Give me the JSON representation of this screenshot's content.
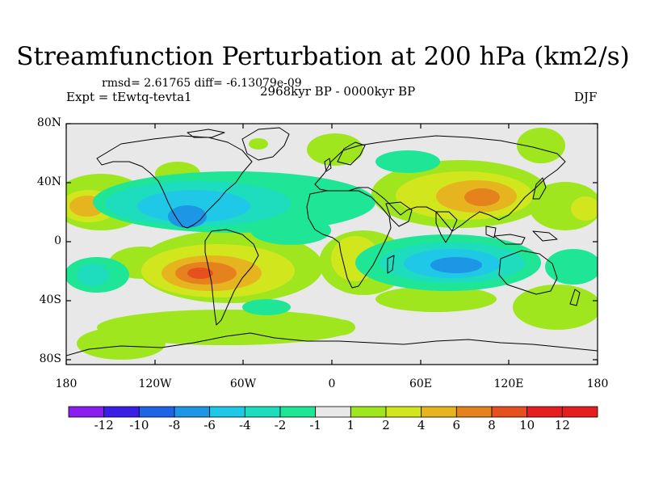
{
  "title": "Streamfunction Perturbation at 200 hPa (km2/s)",
  "stats": "rmsd= 2.61765 diff= -6.13079e-09",
  "experiment": "Expt = tEwtq-tevta1",
  "period": "2968kyr BP - 0000kyr BP",
  "season": "DJF",
  "map": {
    "lat_ticks": [
      "80N",
      "40N",
      "0",
      "40S",
      "80S"
    ],
    "lon_ticks": [
      "180",
      "120W",
      "60W",
      "0",
      "60E",
      "120E",
      "180"
    ]
  },
  "colorbar": {
    "labels": [
      "-12",
      "-10",
      "-8",
      "-6",
      "-4",
      "-2",
      "-1",
      "1",
      "2",
      "4",
      "6",
      "8",
      "10",
      "12"
    ],
    "colors": [
      "#8a1ef0",
      "#3a1ee6",
      "#1e64e6",
      "#1e96e6",
      "#1ec8e6",
      "#1edcbe",
      "#1ee696",
      "#e8e8e8",
      "#a0e61e",
      "#d2e61e",
      "#e6b41e",
      "#e6821e",
      "#e6501e",
      "#e61e1e"
    ]
  },
  "colors": {
    "neutral": "#e8e8e8",
    "pos_light": "#a0e61e",
    "pos_2": "#d2e61e",
    "pos_4": "#e6b41e",
    "pos_6": "#e6821e",
    "pos_8": "#e6501e",
    "neg_light": "#1ee696",
    "neg_2": "#1edcbe",
    "neg_4": "#1ec8e6",
    "neg_6": "#1e96e6"
  }
}
